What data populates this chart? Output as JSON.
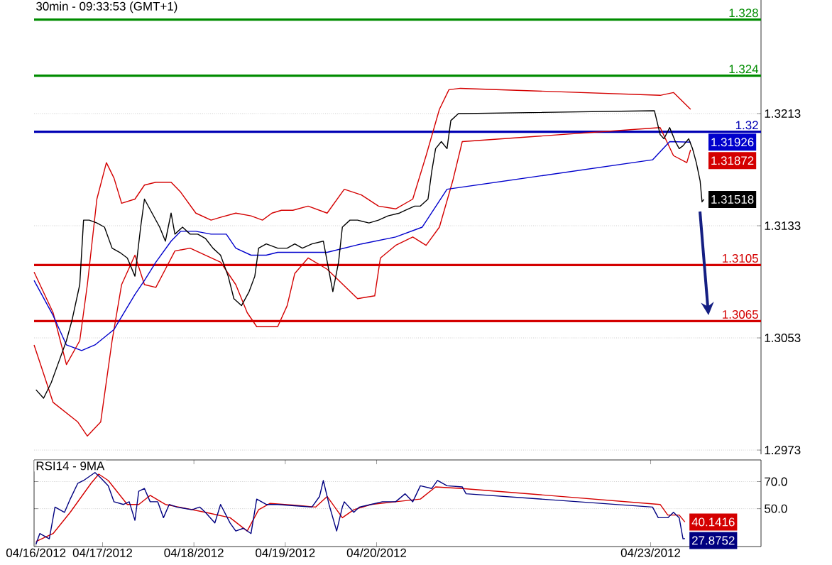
{
  "chart_data": [
    {
      "type": "line",
      "title": "30min - 09:33:53 (GMT+1)",
      "xlim": [
        "2012-04-16T06:00",
        "2012-04-24T05:00"
      ],
      "ylim": [
        1.297,
        1.3294
      ],
      "yticks": [
        1.2973,
        1.3053,
        1.3133,
        1.3213
      ],
      "grid": "y",
      "tick_labels": "y",
      "ref_lines": [
        {
          "axis": "y",
          "value": 1.328,
          "label": "1.328",
          "color": "#008c00"
        },
        {
          "axis": "y",
          "value": 1.324,
          "label": "1.324",
          "color": "#008c00"
        },
        {
          "axis": "y",
          "value": 1.32,
          "label": "1.32",
          "color": "#0000b4"
        },
        {
          "axis": "y",
          "value": 1.3105,
          "label": "1.3105",
          "color": "#d40000"
        },
        {
          "axis": "y",
          "value": 1.3065,
          "label": "1.3065",
          "color": "#d40000"
        }
      ],
      "series": [
        {
          "color": "#d40000",
          "x": [
            "2012-04-16T06:00",
            "2012-04-16T11:00",
            "2012-04-16T14:30",
            "2012-04-16T18:00",
            "2012-04-16T20:00",
            "2012-04-16T22:30",
            "2012-04-17T01:00",
            "2012-04-17T03:00",
            "2012-04-17T05:00",
            "2012-04-17T08:30",
            "2012-04-17T11:00",
            "2012-04-17T14:00",
            "2012-04-17T18:00",
            "2012-04-17T20:30",
            "2012-04-18T00:30",
            "2012-04-18T04:30",
            "2012-04-18T07:00",
            "2012-04-18T11:00",
            "2012-04-18T15:00",
            "2012-04-18T18:00",
            "2012-04-18T20:30",
            "2012-04-18T23:00",
            "2012-04-19T02:00",
            "2012-04-19T06:00",
            "2012-04-19T11:00",
            "2012-04-19T15:30",
            "2012-04-19T20:00",
            "2012-04-20T00:30",
            "2012-04-20T05:00",
            "2012-04-20T09:30",
            "2012-04-20T13:00",
            "2012-04-20T16:30",
            "2012-04-20T19:00",
            "2012-04-20T22:00",
            "2012-04-23T02:30",
            "2012-04-23T06:00",
            "2012-04-23T10:30"
          ],
          "values": [
            1.31,
            1.3071,
            1.3034,
            1.3051,
            1.3091,
            1.3152,
            1.3178,
            1.3167,
            1.3149,
            1.3152,
            1.3162,
            1.3164,
            1.3164,
            1.3157,
            1.3142,
            1.3137,
            1.3139,
            1.3142,
            1.314,
            1.3137,
            1.3142,
            1.3144,
            1.3144,
            1.3147,
            1.3142,
            1.3159,
            1.3155,
            1.3147,
            1.3145,
            1.3152,
            1.3183,
            1.3216,
            1.323,
            1.3231,
            1.3226,
            1.3228,
            1.3216
          ]
        },
        {
          "color": "#d40000",
          "x": [
            "2012-04-16T06:00",
            "2012-04-16T11:00",
            "2012-04-16T17:30",
            "2012-04-16T20:00",
            "2012-04-16T23:30",
            "2012-04-17T02:30",
            "2012-04-17T05:00",
            "2012-04-17T08:30",
            "2012-04-17T11:00",
            "2012-04-17T14:00",
            "2012-04-17T16:30",
            "2012-04-17T19:00",
            "2012-04-17T23:00",
            "2012-04-18T03:00",
            "2012-04-18T07:00",
            "2012-04-18T11:00",
            "2012-04-18T14:00",
            "2012-04-18T16:30",
            "2012-04-18T22:00",
            "2012-04-19T00:30",
            "2012-04-19T02:30",
            "2012-04-19T06:00",
            "2012-04-19T11:00",
            "2012-04-19T19:00",
            "2012-04-19T23:30",
            "2012-04-20T01:00",
            "2012-04-20T05:00",
            "2012-04-20T09:30",
            "2012-04-20T13:00",
            "2012-04-20T16:30",
            "2012-04-20T20:00",
            "2012-04-20T22:30",
            "2012-04-23T02:30",
            "2012-04-23T06:00",
            "2012-04-23T09:30",
            "2012-04-23T10:30"
          ],
          "values": [
            1.3048,
            1.3007,
            1.2993,
            1.2983,
            1.2993,
            1.3051,
            1.3091,
            1.3112,
            1.3091,
            1.3089,
            1.3102,
            1.3115,
            1.3117,
            1.3112,
            1.3107,
            1.3091,
            1.3071,
            1.3061,
            1.3061,
            1.3076,
            1.3099,
            1.311,
            1.3102,
            1.3081,
            1.3083,
            1.311,
            1.3119,
            1.3125,
            1.3119,
            1.3132,
            1.3165,
            1.3193,
            1.3203,
            1.3183,
            1.3178,
            1.31872
          ],
          "value_labels": [
            null,
            null,
            null,
            null,
            null,
            null,
            null,
            null,
            null,
            null,
            null,
            null,
            null,
            null,
            null,
            null,
            null,
            null,
            null,
            null,
            null,
            null,
            null,
            null,
            null,
            null,
            null,
            null,
            null,
            null,
            null,
            null,
            null,
            null,
            null,
            "1.31872"
          ]
        },
        {
          "color": "#0000cc",
          "x": [
            "2012-04-16T06:00",
            "2012-04-16T11:00",
            "2012-04-16T14:30",
            "2012-04-16T18:30",
            "2012-04-16T22:00",
            "2012-04-17T03:00",
            "2012-04-17T08:30",
            "2012-04-17T11:00",
            "2012-04-17T14:00",
            "2012-04-17T18:00",
            "2012-04-17T20:30",
            "2012-04-18T00:30",
            "2012-04-18T04:30",
            "2012-04-18T08:30",
            "2012-04-18T11:00",
            "2012-04-18T15:00",
            "2012-04-18T19:00",
            "2012-04-18T22:00",
            "2012-04-19T02:00",
            "2012-04-19T06:00",
            "2012-04-19T11:00",
            "2012-04-19T20:00",
            "2012-04-20T05:00",
            "2012-04-20T12:00",
            "2012-04-20T18:30",
            "2012-04-23T00:30",
            "2012-04-23T05:00",
            "2012-04-23T10:30"
          ],
          "values": [
            1.3094,
            1.3069,
            1.3048,
            1.3044,
            1.3048,
            1.3059,
            1.3084,
            1.3094,
            1.3107,
            1.3122,
            1.3129,
            1.3129,
            1.3127,
            1.3127,
            1.3117,
            1.3112,
            1.3112,
            1.3114,
            1.3114,
            1.3114,
            1.3114,
            1.312,
            1.3125,
            1.3132,
            1.3159,
            1.318,
            1.3193,
            1.31926
          ],
          "value_labels": [
            null,
            null,
            null,
            null,
            null,
            null,
            null,
            null,
            null,
            null,
            null,
            null,
            null,
            null,
            null,
            null,
            null,
            null,
            null,
            null,
            null,
            null,
            null,
            null,
            null,
            null,
            null,
            "1.31926"
          ]
        },
        {
          "color": "#000000",
          "x": [
            "2012-04-16T06:30",
            "2012-04-16T08:30",
            "2012-04-16T10:30",
            "2012-04-16T12:30",
            "2012-04-16T14:30",
            "2012-04-16T16:00",
            "2012-04-16T18:00",
            "2012-04-16T19:00",
            "2012-04-16T20:30",
            "2012-04-16T22:30",
            "2012-04-17T00:30",
            "2012-04-17T02:30",
            "2012-04-17T04:30",
            "2012-04-17T06:30",
            "2012-04-17T08:30",
            "2012-04-17T10:00",
            "2012-04-17T11:00",
            "2012-04-17T13:00",
            "2012-04-17T15:00",
            "2012-04-17T16:30",
            "2012-04-17T18:00",
            "2012-04-17T19:00",
            "2012-04-17T21:00",
            "2012-04-17T23:00",
            "2012-04-18T01:00",
            "2012-04-18T03:00",
            "2012-04-18T05:00",
            "2012-04-18T07:00",
            "2012-04-18T09:00",
            "2012-04-18T10:30",
            "2012-04-18T12:30",
            "2012-04-18T14:30",
            "2012-04-18T16:00",
            "2012-04-18T17:00",
            "2012-04-18T19:00",
            "2012-04-18T22:00",
            "2012-04-19T00:30",
            "2012-04-19T02:30",
            "2012-04-19T04:30",
            "2012-04-19T07:00",
            "2012-04-19T10:00",
            "2012-04-19T12:30",
            "2012-04-19T14:00",
            "2012-04-19T15:00",
            "2012-04-19T17:00",
            "2012-04-19T19:00",
            "2012-04-19T22:00",
            "2012-04-20T00:30",
            "2012-04-20T03:00",
            "2012-04-20T06:00",
            "2012-04-20T07:30",
            "2012-04-20T10:00",
            "2012-04-20T11:30",
            "2012-04-20T13:30",
            "2012-04-20T14:30",
            "2012-04-20T15:30",
            "2012-04-20T17:00",
            "2012-04-20T18:30",
            "2012-04-20T19:30",
            "2012-04-20T21:30",
            "2012-04-20T23:00",
            "2012-04-23T01:00",
            "2012-04-23T02:30",
            "2012-04-23T03:30",
            "2012-04-23T05:00",
            "2012-04-23T06:30",
            "2012-04-23T07:30",
            "2012-04-23T08:30",
            "2012-04-23T10:00",
            "2012-04-23T11:00",
            "2012-04-23T12:00",
            "2012-04-23T13:00",
            "2012-04-23T13:30",
            "2012-04-23T14:00"
          ],
          "values": [
            1.3016,
            1.301,
            1.3021,
            1.3036,
            1.3051,
            1.3066,
            1.3091,
            1.3137,
            1.3137,
            1.3135,
            1.3132,
            1.3117,
            1.3114,
            1.311,
            1.3097,
            1.3132,
            1.3152,
            1.3142,
            1.3132,
            1.3122,
            1.3142,
            1.3127,
            1.3132,
            1.3127,
            1.3127,
            1.3124,
            1.3117,
            1.3112,
            1.3097,
            1.3081,
            1.3076,
            1.3086,
            1.3097,
            1.3117,
            1.312,
            1.3117,
            1.3117,
            1.312,
            1.3117,
            1.312,
            1.3122,
            1.3086,
            1.3107,
            1.3132,
            1.3137,
            1.3137,
            1.3135,
            1.3137,
            1.314,
            1.3142,
            1.3144,
            1.3147,
            1.3147,
            1.3152,
            1.3172,
            1.3188,
            1.3193,
            1.3188,
            1.3208,
            1.3213,
            1.3213,
            1.3215,
            1.3198,
            1.3195,
            1.3203,
            1.3193,
            1.3188,
            1.319,
            1.3195,
            1.3188,
            1.3178,
            1.3165,
            1.315,
            1.31518
          ],
          "value_labels": [
            null,
            null,
            null,
            null,
            null,
            null,
            null,
            null,
            null,
            null,
            null,
            null,
            null,
            null,
            null,
            null,
            null,
            null,
            null,
            null,
            null,
            null,
            null,
            null,
            null,
            null,
            null,
            null,
            null,
            null,
            null,
            null,
            null,
            null,
            null,
            null,
            null,
            null,
            null,
            null,
            null,
            null,
            null,
            null,
            null,
            null,
            null,
            null,
            null,
            null,
            null,
            null,
            null,
            null,
            null,
            null,
            null,
            null,
            null,
            null,
            null,
            null,
            null,
            null,
            null,
            null,
            null,
            null,
            null,
            null,
            null,
            null,
            null,
            "1.31518"
          ]
        }
      ]
    },
    {
      "type": "line",
      "title": "RSI14 - 9MA",
      "xlim": [
        "2012-04-16T06:00",
        "2012-04-24T05:00"
      ],
      "xticks": [
        {
          "value": "2012-04-16T06:30",
          "label": "04/16/2012"
        },
        {
          "value": "2012-04-17",
          "label": "04/17/2012"
        },
        {
          "value": "2012-04-18",
          "label": "04/18/2012"
        },
        {
          "value": "2012-04-19",
          "label": "04/19/2012"
        },
        {
          "value": "2012-04-20",
          "label": "04/20/2012"
        },
        {
          "value": "2012-04-23",
          "label": "04/23/2012"
        }
      ],
      "ylim": [
        22,
        86
      ],
      "yticks": [
        {
          "value": 70,
          "label": "70.0"
        },
        {
          "value": 50,
          "label": "50.0"
        }
      ],
      "grid": "y",
      "series": [
        {
          "color": "#d40000",
          "x": [
            "2012-04-16T06:30",
            "2012-04-16T11:00",
            "2012-04-16T15:30",
            "2012-04-16T21:00",
            "2012-04-16T23:00",
            "2012-04-17T01:30",
            "2012-04-17T06:30",
            "2012-04-17T09:30",
            "2012-04-17T12:30",
            "2012-04-17T16:30",
            "2012-04-17T21:30",
            "2012-04-18T03:00",
            "2012-04-18T09:30",
            "2012-04-18T14:00",
            "2012-04-18T17:00",
            "2012-04-18T20:00",
            "2012-04-19T03:00",
            "2012-04-19T08:00",
            "2012-04-19T11:00",
            "2012-04-19T15:00",
            "2012-04-19T18:00",
            "2012-04-19T22:30",
            "2012-04-20T05:00",
            "2012-04-20T11:30",
            "2012-04-20T15:30",
            "2012-04-20T22:30",
            "2012-04-23T02:30",
            "2012-04-23T04:30",
            "2012-04-23T07:30",
            "2012-04-23T09:00"
          ],
          "values": [
            25.7,
            31.6,
            47.3,
            68.8,
            75.5,
            70.8,
            53.1,
            53.1,
            59.8,
            53.1,
            50.4,
            47.3,
            43.3,
            33.5,
            49.2,
            53.9,
            52.4,
            51.2,
            59.0,
            43.3,
            49.2,
            53.1,
            55.1,
            57.1,
            66.1,
            64.9,
            53.1,
            45.3,
            45.3,
            40.1416
          ],
          "value_labels": [
            null,
            null,
            null,
            null,
            null,
            null,
            null,
            null,
            null,
            null,
            null,
            null,
            null,
            null,
            null,
            null,
            null,
            null,
            null,
            null,
            null,
            null,
            null,
            null,
            null,
            null,
            null,
            null,
            null,
            "40.1416"
          ]
        },
        {
          "color": "#000080",
          "x": [
            "2012-04-16T06:30",
            "2012-04-16T07:30",
            "2012-04-16T10:00",
            "2012-04-16T11:30",
            "2012-04-16T14:00",
            "2012-04-16T15:30",
            "2012-04-16T17:30",
            "2012-04-16T19:00",
            "2012-04-16T21:00",
            "2012-04-16T22:00",
            "2012-04-16T23:30",
            "2012-04-17T01:30",
            "2012-04-17T03:00",
            "2012-04-17T05:30",
            "2012-04-17T07:00",
            "2012-04-17T08:30",
            "2012-04-17T09:30",
            "2012-04-17T11:00",
            "2012-04-17T12:30",
            "2012-04-17T14:30",
            "2012-04-17T16:00",
            "2012-04-17T17:30",
            "2012-04-17T19:30",
            "2012-04-17T23:30",
            "2012-04-18T01:30",
            "2012-04-18T03:00",
            "2012-04-18T05:30",
            "2012-04-18T07:00",
            "2012-04-18T09:30",
            "2012-04-18T11:00",
            "2012-04-18T13:00",
            "2012-04-18T15:00",
            "2012-04-18T16:30",
            "2012-04-18T19:00",
            "2012-04-18T22:00",
            "2012-04-19T03:00",
            "2012-04-19T07:00",
            "2012-04-19T09:00",
            "2012-04-19T10:00",
            "2012-04-19T11:30",
            "2012-04-19T13:30",
            "2012-04-19T15:00",
            "2012-04-19T15:30",
            "2012-04-19T18:00",
            "2012-04-19T19:30",
            "2012-04-19T22:30",
            "2012-04-20T01:30",
            "2012-04-20T05:00",
            "2012-04-20T07:30",
            "2012-04-20T09:30",
            "2012-04-20T11:30",
            "2012-04-20T14:30",
            "2012-04-20T16:00",
            "2012-04-20T18:30",
            "2012-04-20T22:30",
            "2012-04-20T23:30",
            "2012-04-23T00:30",
            "2012-04-23T02:00",
            "2012-04-23T04:30",
            "2012-04-23T06:00",
            "2012-04-23T07:30",
            "2012-04-23T08:30",
            "2012-04-23T09:00"
          ],
          "values": [
            23.7,
            31.6,
            27.7,
            51.2,
            47.3,
            57.1,
            68.8,
            70.8,
            74.7,
            76.7,
            72.7,
            66.9,
            55.1,
            53.1,
            55.1,
            41.4,
            62.9,
            64.9,
            55.1,
            55.1,
            43.3,
            53.1,
            51.2,
            49.2,
            51.2,
            47.3,
            39.4,
            53.1,
            39.4,
            33.5,
            35.5,
            31.6,
            57.1,
            53.1,
            53.1,
            52.0,
            51.2,
            59.0,
            70.8,
            53.1,
            33.5,
            51.2,
            55.1,
            47.3,
            51.2,
            53.1,
            55.1,
            55.1,
            61.0,
            55.1,
            66.9,
            64.9,
            70.8,
            66.9,
            66.1,
            61.0,
            51.2,
            43.3,
            43.3,
            47.3,
            43.3,
            27.7,
            27.8752
          ],
          "value_labels": [
            null,
            null,
            null,
            null,
            null,
            null,
            null,
            null,
            null,
            null,
            null,
            null,
            null,
            null,
            null,
            null,
            null,
            null,
            null,
            null,
            null,
            null,
            null,
            null,
            null,
            null,
            null,
            null,
            null,
            null,
            null,
            null,
            null,
            null,
            null,
            null,
            null,
            null,
            null,
            null,
            null,
            null,
            null,
            null,
            null,
            null,
            null,
            null,
            null,
            null,
            null,
            null,
            null,
            null,
            null,
            null,
            null,
            null,
            null,
            null,
            null,
            null,
            "27.8752"
          ]
        }
      ]
    }
  ]
}
